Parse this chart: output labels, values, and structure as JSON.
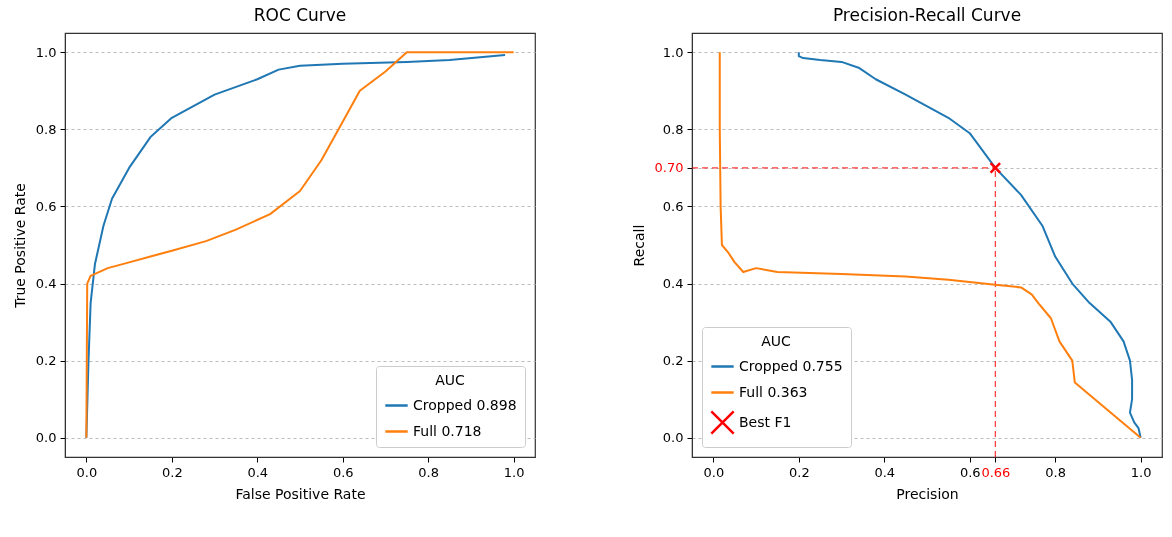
{
  "chart_data": [
    {
      "type": "line",
      "title": "ROC Curve",
      "xlabel": "False Positive Rate",
      "ylabel": "True Positive Rate",
      "legend_title": "AUC",
      "legend": "bottom right",
      "grid": "y",
      "line_style": "solid",
      "xlim": [
        -0.05,
        1.05
      ],
      "ylim": [
        -0.05,
        1.05
      ],
      "xticks": [
        {
          "value": 0,
          "label": "0.0"
        },
        {
          "value": 0.2,
          "label": "0.2"
        },
        {
          "value": 0.4,
          "label": "0.4"
        },
        {
          "value": 0.6,
          "label": "0.6"
        },
        {
          "value": 0.8,
          "label": "0.8"
        },
        {
          "value": 1,
          "label": "1.0"
        }
      ],
      "yticks": [
        {
          "value": 0,
          "label": "0.0"
        },
        {
          "value": 0.2,
          "label": "0.2"
        },
        {
          "value": 0.4,
          "label": "0.4"
        },
        {
          "value": 0.6,
          "label": "0.6"
        },
        {
          "value": 0.8,
          "label": "0.8"
        },
        {
          "value": 1,
          "label": "1.0"
        }
      ],
      "series": [
        {
          "name": "Cropped 0.898",
          "color": "#1f77b4",
          "x": [
            0,
            0.005,
            0.01,
            0.02,
            0.04,
            0.06,
            0.1,
            0.15,
            0.2,
            0.3,
            0.4,
            0.45,
            0.5,
            0.6,
            0.75,
            0.85,
            0.98
          ],
          "values": [
            0,
            0.2,
            0.35,
            0.45,
            0.55,
            0.62,
            0.7,
            0.78,
            0.83,
            0.89,
            0.93,
            0.955,
            0.965,
            0.97,
            0.975,
            0.98,
            0.993
          ]
        },
        {
          "name": "Full 0.718",
          "color": "#ff7f0e",
          "x": [
            0,
            0.002,
            0.01,
            0.05,
            0.1,
            0.15,
            0.2,
            0.28,
            0.35,
            0.43,
            0.5,
            0.55,
            0.6,
            0.64,
            0.7,
            0.75,
            1.0
          ],
          "values": [
            0,
            0.4,
            0.42,
            0.44,
            0.455,
            0.47,
            0.485,
            0.51,
            0.54,
            0.58,
            0.64,
            0.72,
            0.82,
            0.9,
            0.95,
            1.0,
            1.0
          ]
        }
      ]
    },
    {
      "type": "line",
      "title": "Precision-Recall Curve",
      "xlabel": "Precision",
      "ylabel": "Recall",
      "legend_title": "AUC",
      "legend": "bottom left",
      "grid": "y",
      "line_style": "solid",
      "xlim": [
        -0.05,
        1.05
      ],
      "ylim": [
        -0.05,
        1.05
      ],
      "xticks": [
        {
          "value": 0,
          "label": "0.0"
        },
        {
          "value": 0.2,
          "label": "0.2"
        },
        {
          "value": 0.4,
          "label": "0.4"
        },
        {
          "value": 0.6,
          "label": "0.6"
        },
        0.66,
        {
          "value": 0.8,
          "label": "0.8"
        },
        {
          "value": 1,
          "label": "1.0"
        }
      ],
      "yticks": [
        {
          "value": 0,
          "label": "0.0"
        },
        {
          "value": 0.2,
          "label": "0.2"
        },
        {
          "value": 0.4,
          "label": "0.4"
        },
        {
          "value": 0.6,
          "label": "0.6"
        },
        {
          "value": 0.7,
          "label": "0.70"
        },
        {
          "value": 0.8,
          "label": "0.8"
        },
        {
          "value": 1,
          "label": "1.0"
        }
      ],
      "ref_lines": [
        {
          "axis": "y",
          "value": 0.7,
          "color": "#ff0000",
          "line_style": "dashed"
        },
        {
          "axis": "x",
          "value": 0.66,
          "color": "#ff0000",
          "line_style": "dashed"
        }
      ],
      "series": [
        {
          "name": "Cropped 0.755",
          "color": "#1f77b4",
          "x": [
            0.2,
            0.2,
            0.21,
            0.25,
            0.3,
            0.34,
            0.38,
            0.45,
            0.55,
            0.6,
            0.66,
            0.72,
            0.77,
            0.8,
            0.84,
            0.88,
            0.93,
            0.96,
            0.975,
            0.98,
            0.98,
            0.975,
            0.985,
            0.995,
            1.0
          ],
          "values": [
            1.0,
            0.99,
            0.985,
            0.98,
            0.975,
            0.96,
            0.93,
            0.89,
            0.83,
            0.79,
            0.7,
            0.63,
            0.55,
            0.47,
            0.4,
            0.35,
            0.3,
            0.25,
            0.2,
            0.15,
            0.1,
            0.065,
            0.04,
            0.025,
            0.0
          ]
        },
        {
          "name": "Full 0.363",
          "color": "#ff7f0e",
          "x": [
            0.015,
            0.015,
            0.017,
            0.02,
            0.035,
            0.05,
            0.07,
            0.1,
            0.15,
            0.3,
            0.45,
            0.55,
            0.66,
            0.72,
            0.745,
            0.76,
            0.79,
            0.81,
            0.84,
            0.846,
            1.0
          ],
          "values": [
            1.0,
            0.8,
            0.6,
            0.5,
            0.48,
            0.455,
            0.43,
            0.44,
            0.43,
            0.425,
            0.418,
            0.41,
            0.397,
            0.39,
            0.372,
            0.35,
            0.31,
            0.25,
            0.2,
            0.143,
            0.0
          ]
        },
        {
          "name": "Best F1",
          "type": "scatter",
          "marker": "cross",
          "color": "#ff0000",
          "x": [
            0.66
          ],
          "values": [
            0.7
          ]
        }
      ]
    }
  ]
}
